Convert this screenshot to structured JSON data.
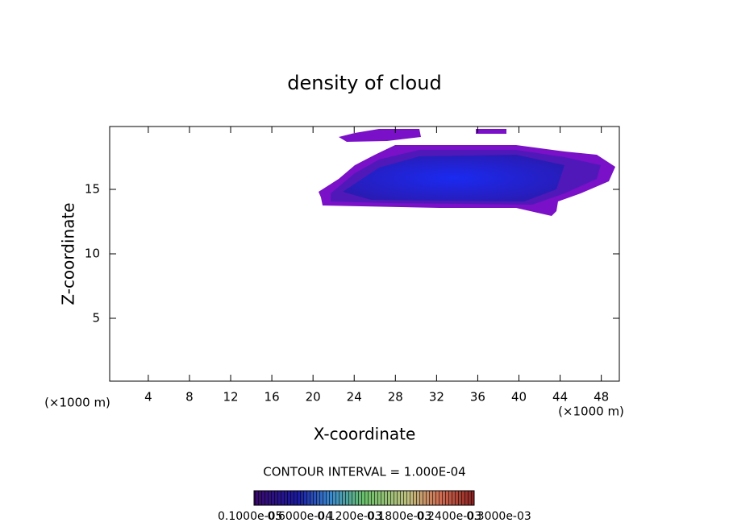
{
  "chart_data": {
    "type": "contour",
    "title": "density of cloud",
    "x_label": "X-coordinate",
    "y_label": "Z-coordinate",
    "x_unit_left": "(×1000 m)",
    "x_unit_right": "(×1000 m)",
    "xlim": [
      0.25,
      49.75
    ],
    "ylim": [
      0.125,
      19.875
    ],
    "xticks": [
      4,
      8,
      12,
      16,
      20,
      24,
      28,
      32,
      36,
      40,
      44,
      48
    ],
    "yticks": [
      5,
      10,
      15
    ],
    "contour_interval": "CONTOUR INTERVAL = 1.000E-04",
    "colorbar_labels": [
      "0.1000e-05",
      "0.6000e-04",
      "0.1200e-03",
      "0.1800e-03",
      "0.2400e-03",
      "0.3000e-03"
    ]
  }
}
